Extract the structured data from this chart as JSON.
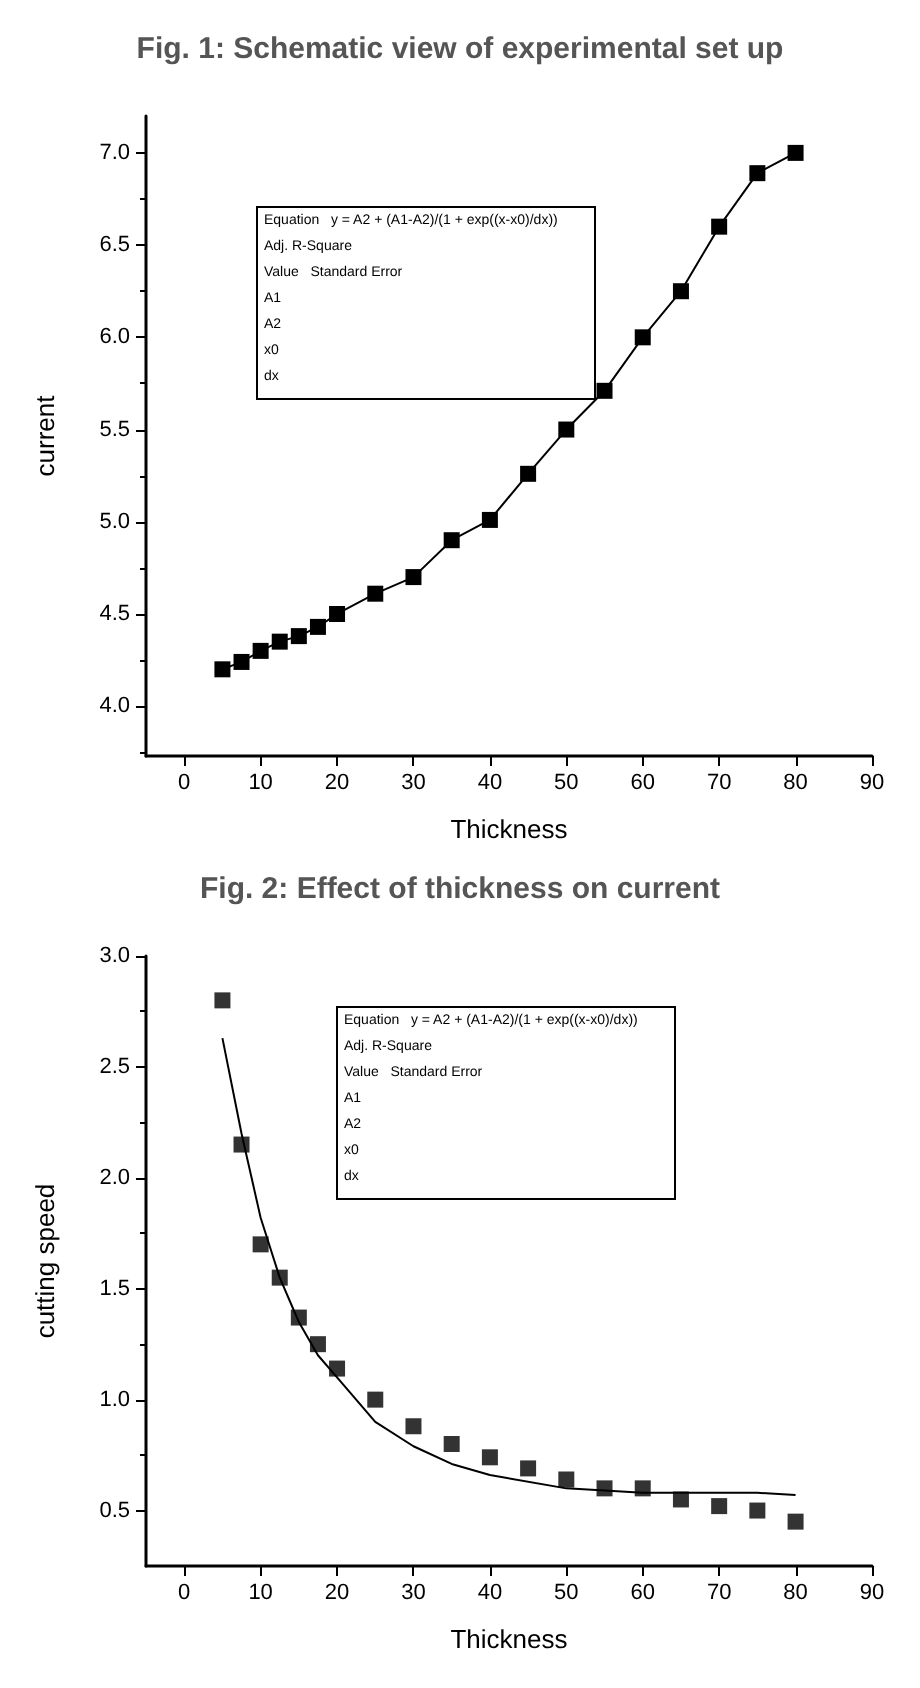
{
  "chart_data": [
    {
      "type": "line",
      "title": "Fig. 1: Schematic view of experimental set up",
      "xlabel": "Thickness",
      "ylabel": "current",
      "xlim": [
        -5,
        90
      ],
      "xticks": [
        0,
        10,
        20,
        30,
        40,
        50,
        60,
        70,
        80,
        90
      ],
      "ylim": [
        3.73,
        7.2
      ],
      "yticks": [
        {
          "value": 4,
          "label": "4.0"
        },
        {
          "value": 4.5,
          "label": "4.5"
        },
        {
          "value": 5,
          "label": "5.0"
        },
        {
          "value": 5.5,
          "label": "5.5"
        },
        {
          "value": 6,
          "label": "6.0"
        },
        {
          "value": 6.5,
          "label": "6.5"
        },
        {
          "value": 7,
          "label": "7.0"
        }
      ],
      "grid": false,
      "series": [
        {
          "marker": "square",
          "color": "#000000",
          "x": [
            5,
            7.5,
            10,
            12.5,
            15,
            17.5,
            20,
            25,
            30,
            35,
            40,
            45,
            50,
            55,
            60,
            65,
            70,
            75,
            80
          ],
          "values": [
            4.2,
            4.24,
            4.3,
            4.35,
            4.38,
            4.43,
            4.5,
            4.61,
            4.7,
            4.9,
            5.01,
            5.26,
            5.5,
            5.71,
            6.0,
            6.25,
            6.6,
            6.89,
            7.0
          ]
        }
      ],
      "annotations": [
        "Equation   y = A2 + (A1-A2)/(1 + exp((x-x0)/dx))",
        "Adj. R-Square",
        "Value   Standard Error",
        "A1",
        "A2",
        "x0",
        "dx"
      ]
    },
    {
      "type": "scatter",
      "title": "Fig. 2: Effect of thickness on current",
      "xlabel": "Thickness",
      "ylabel": "cutting speed",
      "xlim": [
        -5,
        90
      ],
      "xticks": [
        0,
        10,
        20,
        30,
        40,
        50,
        60,
        70,
        80,
        90
      ],
      "ylim": [
        0.25,
        3.0
      ],
      "yticks": [
        {
          "value": 0.5,
          "label": "0.5"
        },
        {
          "value": 1,
          "label": "1.0"
        },
        {
          "value": 1.5,
          "label": "1.5"
        },
        {
          "value": 2,
          "label": "2.0"
        },
        {
          "value": 2.5,
          "label": "2.5"
        },
        {
          "value": 3,
          "label": "3.0"
        }
      ],
      "grid": false,
      "series": [
        {
          "marker": "square",
          "color": "#000000",
          "x": [
            5,
            7.5,
            10,
            12.5,
            15,
            17.5,
            20,
            25,
            30,
            35,
            40,
            45,
            50,
            55,
            60,
            65,
            70,
            75,
            80
          ],
          "values": [
            2.8,
            2.15,
            1.7,
            1.55,
            1.37,
            1.25,
            1.14,
            1.0,
            0.88,
            0.8,
            0.74,
            0.69,
            0.64,
            0.6,
            0.6,
            0.55,
            0.52,
            0.5,
            0.45
          ]
        },
        {
          "type": "line",
          "marker": "none",
          "color": "#000000",
          "x": [
            5,
            7.5,
            10,
            12.5,
            15,
            17.5,
            20,
            25,
            30,
            35,
            40,
            50,
            60,
            75,
            80
          ],
          "values": [
            2.63,
            2.2,
            1.82,
            1.55,
            1.35,
            1.2,
            1.1,
            0.9,
            0.79,
            0.71,
            0.66,
            0.6,
            0.58,
            0.58,
            0.57
          ]
        }
      ],
      "annotations": [
        "Equation   y = A2 + (A1-A2)/(1 + exp((x-x0)/dx))",
        "Adj. R-Square",
        "Value   Standard Error",
        "A1",
        "A2",
        "x0",
        "dx"
      ]
    }
  ]
}
